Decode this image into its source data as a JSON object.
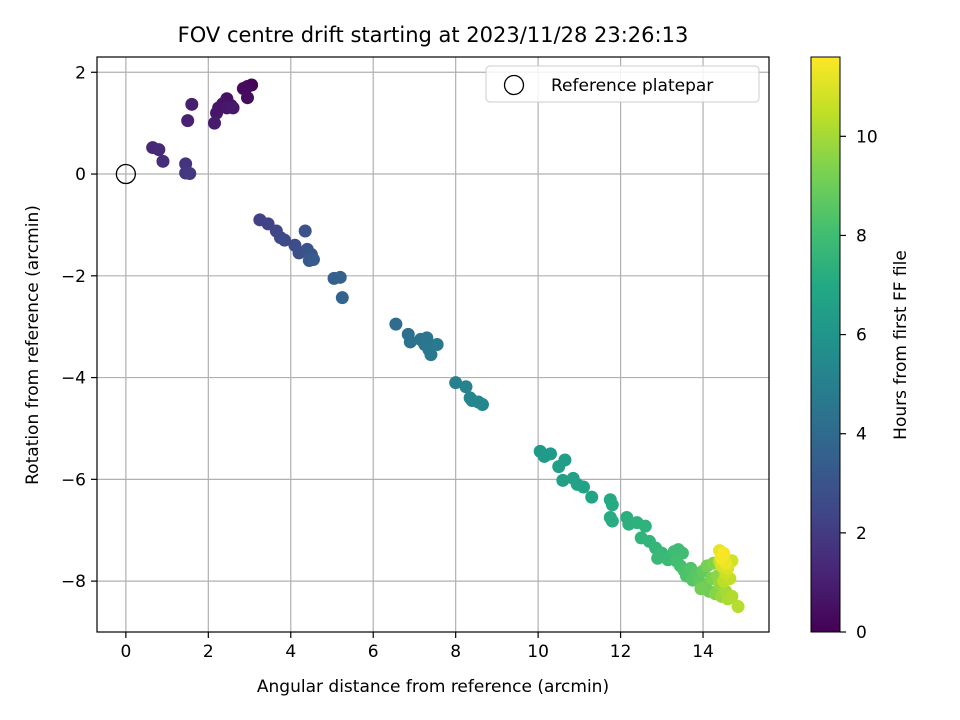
{
  "chart_data": {
    "type": "scatter",
    "title": "FOV centre drift starting at 2023/11/28 23:26:13",
    "xlabel": "Angular distance from reference (arcmin)",
    "ylabel": "Rotation from reference (arcmin)",
    "xlim": [
      -0.7,
      15.6
    ],
    "ylim": [
      -9.0,
      2.3
    ],
    "xticks": [
      0,
      2,
      4,
      6,
      8,
      10,
      12,
      14
    ],
    "yticks": [
      -8,
      -6,
      -4,
      -2,
      0,
      2
    ],
    "grid": true,
    "colormap": "viridis",
    "colorbar": {
      "label": "Hours from first FF file",
      "range": [
        0,
        11.6
      ],
      "ticks": [
        0,
        2,
        4,
        6,
        8,
        10
      ]
    },
    "legend": {
      "position": "top-right",
      "entries": [
        {
          "label": "Reference platepar",
          "marker": "open-circle"
        }
      ]
    },
    "reference_point": {
      "x": 0,
      "y": 0
    },
    "points": [
      {
        "x": 3.05,
        "y": 1.75,
        "c": 0.1
      },
      {
        "x": 2.95,
        "y": 1.72,
        "c": 0.2
      },
      {
        "x": 2.85,
        "y": 1.68,
        "c": 0.3
      },
      {
        "x": 2.95,
        "y": 1.5,
        "c": 0.35
      },
      {
        "x": 2.45,
        "y": 1.48,
        "c": 0.5
      },
      {
        "x": 2.55,
        "y": 1.35,
        "c": 0.55
      },
      {
        "x": 2.35,
        "y": 1.38,
        "c": 0.6
      },
      {
        "x": 2.25,
        "y": 1.3,
        "c": 0.65
      },
      {
        "x": 2.2,
        "y": 1.2,
        "c": 0.7
      },
      {
        "x": 2.45,
        "y": 1.3,
        "c": 0.75
      },
      {
        "x": 2.6,
        "y": 1.3,
        "c": 0.8
      },
      {
        "x": 2.15,
        "y": 1.0,
        "c": 0.9
      },
      {
        "x": 1.6,
        "y": 1.37,
        "c": 1.0
      },
      {
        "x": 1.5,
        "y": 1.05,
        "c": 1.05
      },
      {
        "x": 0.65,
        "y": 0.52,
        "c": 1.3
      },
      {
        "x": 0.8,
        "y": 0.48,
        "c": 1.4
      },
      {
        "x": 0.9,
        "y": 0.25,
        "c": 1.5
      },
      {
        "x": 1.45,
        "y": 0.2,
        "c": 1.7
      },
      {
        "x": 1.45,
        "y": 0.02,
        "c": 1.8
      },
      {
        "x": 1.55,
        "y": 0.01,
        "c": 1.9
      },
      {
        "x": 3.25,
        "y": -0.9,
        "c": 2.2
      },
      {
        "x": 3.45,
        "y": -0.98,
        "c": 2.3
      },
      {
        "x": 3.65,
        "y": -1.12,
        "c": 2.4
      },
      {
        "x": 3.75,
        "y": -1.25,
        "c": 2.5
      },
      {
        "x": 3.85,
        "y": -1.3,
        "c": 2.6
      },
      {
        "x": 4.1,
        "y": -1.4,
        "c": 2.7
      },
      {
        "x": 4.2,
        "y": -1.55,
        "c": 2.8
      },
      {
        "x": 4.35,
        "y": -1.12,
        "c": 2.9
      },
      {
        "x": 4.4,
        "y": -1.48,
        "c": 3.0
      },
      {
        "x": 4.5,
        "y": -1.58,
        "c": 3.1
      },
      {
        "x": 4.45,
        "y": -1.7,
        "c": 3.2
      },
      {
        "x": 4.55,
        "y": -1.68,
        "c": 3.3
      },
      {
        "x": 5.05,
        "y": -2.05,
        "c": 3.5
      },
      {
        "x": 5.2,
        "y": -2.03,
        "c": 3.6
      },
      {
        "x": 5.25,
        "y": -2.43,
        "c": 3.7
      },
      {
        "x": 6.55,
        "y": -2.95,
        "c": 4.1
      },
      {
        "x": 6.85,
        "y": -3.15,
        "c": 4.2
      },
      {
        "x": 6.9,
        "y": -3.3,
        "c": 4.3
      },
      {
        "x": 7.15,
        "y": -3.25,
        "c": 4.4
      },
      {
        "x": 7.25,
        "y": -3.35,
        "c": 4.5
      },
      {
        "x": 7.3,
        "y": -3.22,
        "c": 4.55
      },
      {
        "x": 7.35,
        "y": -3.45,
        "c": 4.6
      },
      {
        "x": 7.4,
        "y": -3.55,
        "c": 4.65
      },
      {
        "x": 7.55,
        "y": -3.35,
        "c": 4.7
      },
      {
        "x": 8.0,
        "y": -4.1,
        "c": 5.0
      },
      {
        "x": 8.25,
        "y": -4.18,
        "c": 5.1
      },
      {
        "x": 8.35,
        "y": -4.4,
        "c": 5.2
      },
      {
        "x": 8.4,
        "y": -4.45,
        "c": 5.25
      },
      {
        "x": 8.55,
        "y": -4.48,
        "c": 5.3
      },
      {
        "x": 8.65,
        "y": -4.53,
        "c": 5.35
      },
      {
        "x": 10.05,
        "y": -5.45,
        "c": 6.2
      },
      {
        "x": 10.15,
        "y": -5.55,
        "c": 6.25
      },
      {
        "x": 10.3,
        "y": -5.5,
        "c": 6.3
      },
      {
        "x": 10.5,
        "y": -5.75,
        "c": 6.4
      },
      {
        "x": 10.65,
        "y": -5.62,
        "c": 6.45
      },
      {
        "x": 10.6,
        "y": -6.02,
        "c": 6.5
      },
      {
        "x": 10.85,
        "y": -5.98,
        "c": 6.6
      },
      {
        "x": 10.95,
        "y": -6.1,
        "c": 6.65
      },
      {
        "x": 11.1,
        "y": -6.15,
        "c": 6.7
      },
      {
        "x": 11.3,
        "y": -6.35,
        "c": 6.8
      },
      {
        "x": 11.75,
        "y": -6.4,
        "c": 7.0
      },
      {
        "x": 11.8,
        "y": -6.5,
        "c": 7.05
      },
      {
        "x": 11.75,
        "y": -6.75,
        "c": 7.1
      },
      {
        "x": 11.8,
        "y": -6.82,
        "c": 7.15
      },
      {
        "x": 12.15,
        "y": -6.75,
        "c": 7.3
      },
      {
        "x": 12.2,
        "y": -6.88,
        "c": 7.35
      },
      {
        "x": 12.4,
        "y": -6.85,
        "c": 7.4
      },
      {
        "x": 12.6,
        "y": -6.92,
        "c": 7.45
      },
      {
        "x": 12.5,
        "y": -7.15,
        "c": 7.5
      },
      {
        "x": 12.7,
        "y": -7.22,
        "c": 7.55
      },
      {
        "x": 12.85,
        "y": -7.35,
        "c": 7.6
      },
      {
        "x": 13.0,
        "y": -7.45,
        "c": 7.7
      },
      {
        "x": 12.9,
        "y": -7.55,
        "c": 7.75
      },
      {
        "x": 13.15,
        "y": -7.58,
        "c": 7.8
      },
      {
        "x": 13.3,
        "y": -7.42,
        "c": 7.9
      },
      {
        "x": 13.4,
        "y": -7.38,
        "c": 7.95
      },
      {
        "x": 13.5,
        "y": -7.45,
        "c": 8.0
      },
      {
        "x": 13.35,
        "y": -7.6,
        "c": 8.05
      },
      {
        "x": 13.45,
        "y": -7.7,
        "c": 8.1
      },
      {
        "x": 13.55,
        "y": -7.8,
        "c": 8.2
      },
      {
        "x": 13.6,
        "y": -7.9,
        "c": 8.3
      },
      {
        "x": 13.7,
        "y": -7.75,
        "c": 8.4
      },
      {
        "x": 13.75,
        "y": -7.98,
        "c": 8.5
      },
      {
        "x": 13.85,
        "y": -7.85,
        "c": 8.6
      },
      {
        "x": 13.9,
        "y": -8.0,
        "c": 8.7
      },
      {
        "x": 14.0,
        "y": -7.8,
        "c": 8.8
      },
      {
        "x": 14.05,
        "y": -8.1,
        "c": 8.9
      },
      {
        "x": 14.15,
        "y": -8.2,
        "c": 9.0
      },
      {
        "x": 13.95,
        "y": -8.15,
        "c": 9.1
      },
      {
        "x": 14.1,
        "y": -7.7,
        "c": 9.2
      },
      {
        "x": 14.2,
        "y": -7.95,
        "c": 9.3
      },
      {
        "x": 14.25,
        "y": -7.65,
        "c": 9.4
      },
      {
        "x": 14.3,
        "y": -8.25,
        "c": 9.5
      },
      {
        "x": 14.35,
        "y": -7.9,
        "c": 9.6
      },
      {
        "x": 14.4,
        "y": -8.05,
        "c": 9.7
      },
      {
        "x": 14.45,
        "y": -8.3,
        "c": 9.8
      },
      {
        "x": 14.5,
        "y": -7.75,
        "c": 9.9
      },
      {
        "x": 14.55,
        "y": -8.2,
        "c": 10.0
      },
      {
        "x": 14.6,
        "y": -8.35,
        "c": 10.1
      },
      {
        "x": 14.7,
        "y": -8.3,
        "c": 10.2
      },
      {
        "x": 14.85,
        "y": -8.5,
        "c": 10.3
      },
      {
        "x": 14.5,
        "y": -8.0,
        "c": 10.4
      },
      {
        "x": 14.65,
        "y": -7.95,
        "c": 10.5
      },
      {
        "x": 14.4,
        "y": -7.6,
        "c": 10.6
      },
      {
        "x": 14.55,
        "y": -7.85,
        "c": 10.7
      },
      {
        "x": 14.7,
        "y": -7.6,
        "c": 10.8
      },
      {
        "x": 14.45,
        "y": -7.7,
        "c": 10.9
      },
      {
        "x": 14.6,
        "y": -7.75,
        "c": 11.0
      },
      {
        "x": 14.5,
        "y": -7.5,
        "c": 11.1
      },
      {
        "x": 14.4,
        "y": -7.4,
        "c": 11.2
      },
      {
        "x": 14.55,
        "y": -7.65,
        "c": 11.3
      },
      {
        "x": 14.45,
        "y": -7.55,
        "c": 11.4
      },
      {
        "x": 14.5,
        "y": -7.45,
        "c": 11.5
      }
    ]
  }
}
